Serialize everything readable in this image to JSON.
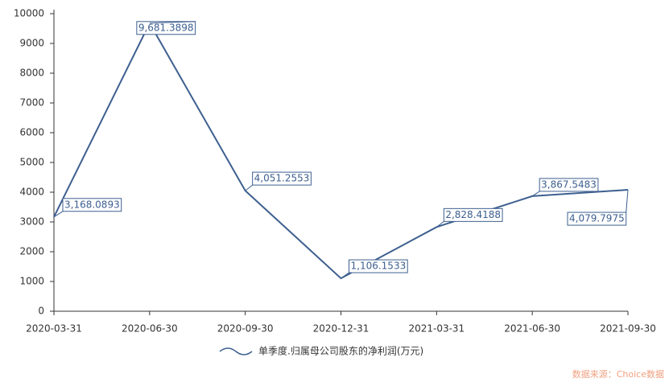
{
  "chart_data": {
    "type": "line",
    "categories": [
      "2020-03-31",
      "2020-06-30",
      "2020-09-30",
      "2020-12-31",
      "2021-03-31",
      "2021-06-30",
      "2021-09-30"
    ],
    "series": [
      {
        "name": "单季度.归属母公司股东的净利润(万元)",
        "color": "#3d5f8f",
        "values": [
          3168.0893,
          9681.3898,
          4051.2553,
          1106.1533,
          2828.4188,
          3867.5483,
          4079.7975
        ],
        "value_labels": [
          "3,168.0893",
          "9,681.3898",
          "4,051.2553",
          "1,106.1533",
          "2,828.4188",
          "3,867.5483",
          "4,079.7975"
        ]
      }
    ],
    "ylim": [
      0,
      10000
    ],
    "yticks": [
      0,
      1000,
      2000,
      3000,
      4000,
      5000,
      6000,
      7000,
      8000,
      9000,
      10000
    ],
    "grid": false,
    "source": "数据来源：Choice数据"
  }
}
